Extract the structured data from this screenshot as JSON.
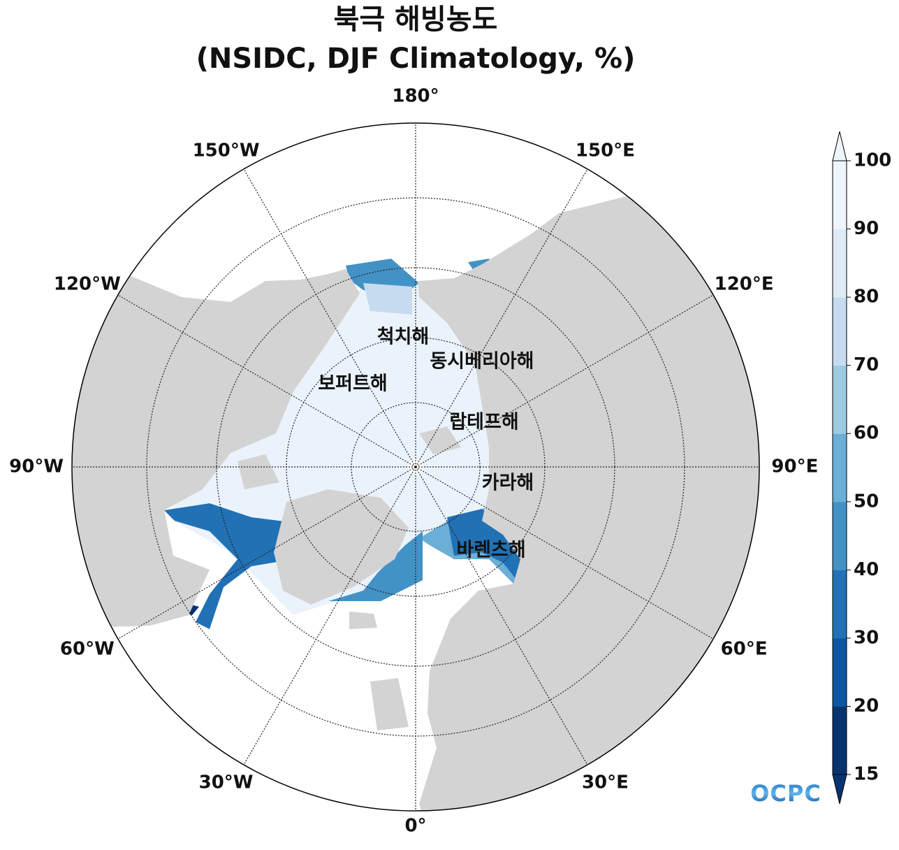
{
  "chart_data": {
    "type": "map",
    "title": "북극 해빙농도",
    "subtitle": "(NSIDC, DJF Climatology, %)",
    "lon_labels": [
      "180°",
      "150°E",
      "120°E",
      "90°E",
      "60°E",
      "30°E",
      "0°",
      "30°W",
      "60°W",
      "90°W",
      "120°W",
      "150°W"
    ],
    "sea_labels": [
      "척치해",
      "동시베리아해",
      "보퍼트해",
      "랍테프해",
      "카라해",
      "바렌츠해"
    ],
    "colorbar": {
      "ticks": [
        15,
        20,
        30,
        40,
        50,
        60,
        70,
        80,
        90,
        100
      ],
      "colors": [
        "#08336e",
        "#0d57a1",
        "#2171b5",
        "#4292c6",
        "#6baed6",
        "#9ecae1",
        "#c6dbef",
        "#deebf7",
        "#eef5fc"
      ]
    }
  },
  "logo": "OCPC"
}
